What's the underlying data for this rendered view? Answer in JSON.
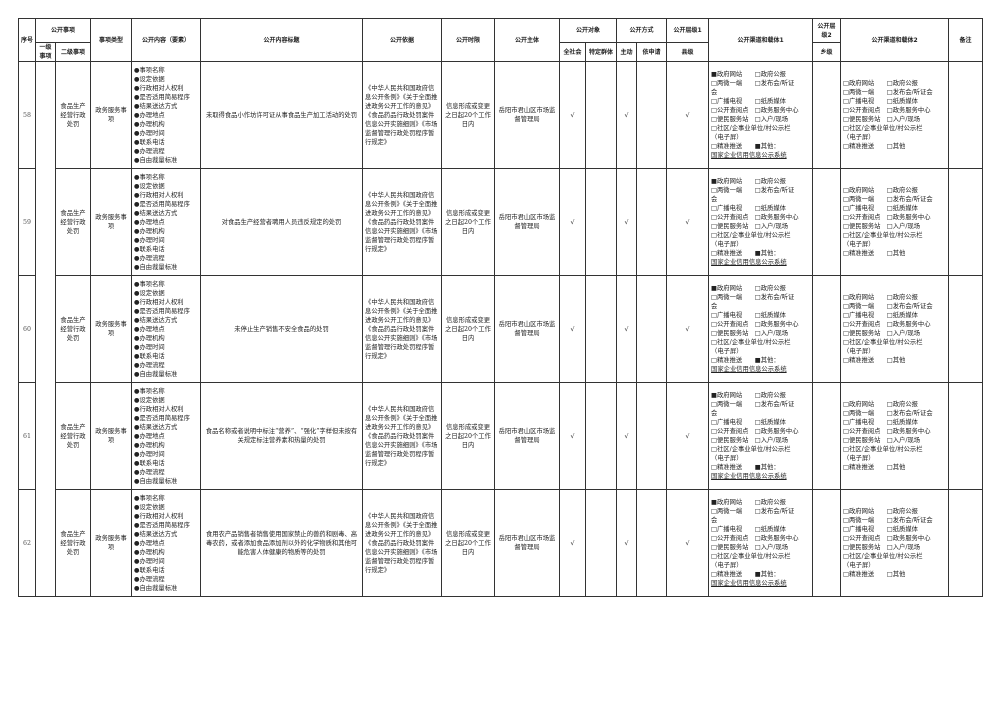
{
  "header": {
    "seq": "序号",
    "public_item": "公开事项",
    "level1": "一级事项",
    "level2": "二级事项",
    "item_type": "事项类型",
    "content": "公开内容（要素）",
    "content_title": "公开内容标题",
    "basis": "公开依据",
    "time_limit": "公开时限",
    "subject": "公开主体",
    "target": "公开对象",
    "target_all": "全社会",
    "target_specific": "特定群体",
    "method": "公开方式",
    "method_active": "主动",
    "method_request": "依申请",
    "level_1": "公开层级1",
    "county": "县级",
    "channel1": "公开渠道和载体1",
    "level_2": "公开层级2",
    "township": "乡级",
    "channel2": "公开渠道和载体2",
    "remark": "备注"
  },
  "common": {
    "level2": "食品生产经营行政处罚",
    "item_type": "政务服务事项",
    "content_items": [
      "●事项名称",
      "●设定依据",
      "●行政相对人权利",
      "●是否适用简易程序",
      "●结果送达方式",
      "●办理地点",
      "●办理机构",
      "●办理时间",
      "●联系电话",
      "●办理流程",
      "●自由裁量标准"
    ],
    "basis": "《中华人民共和国政府信息公开条例》《关于全面推进政务公开工作的意见》《食品药品行政处罚案件信息公开实施细则》《市场监督管理行政处罚程序暂行规定》",
    "time_limit": "信息形成或变更之日起20个工作日内",
    "subject": "岳阳市君山区市场监督管理局",
    "check": "√",
    "channel1_lines": [
      "■政府网站　　□政府公报",
      "□两微一端　　□发布会/听证",
      "会",
      "□广播电视　　□纸质媒体",
      "□公开查阅点　□政务服务中心",
      "□便民服务站　□入户/现场",
      "□社区/企事业单位/村公示栏",
      "（电子屏）",
      "□精准推送　　■其他："
    ],
    "channel1_link": "国家企业信用信息公示系统",
    "channel2_lines": [
      "□政府网站　　□政府公报",
      "□两微一端　　□发布会/听证会",
      "□广播电视　　□纸质媒体",
      "□公开查阅点　□政务服务中心",
      "□便民服务站　□入户/现场",
      "□社区/企事业单位/村公示栏",
      "（电子屏）",
      "□精准推送　　□其他"
    ]
  },
  "rows": [
    {
      "seq": "58",
      "title": "未取得食品小作坊许可证从事食品生产加工活动的处罚"
    },
    {
      "seq": "59",
      "title": "对食品生产经营者聘用人员违反规定的处罚"
    },
    {
      "seq": "60",
      "title": "未停止生产销售不安全食品的处罚"
    },
    {
      "seq": "61",
      "title": "食品名称或者说明中标注“营养”、“强化”字样但未按有关规定标注营养素和热量的处罚"
    },
    {
      "seq": "62",
      "title": "食用农产品销售者销售使用国家禁止的兽药和剧毒、高毒农药，或者添加食品添加剂以外的化学物质和其他可能危害人体健康的物质等的处罚"
    }
  ]
}
